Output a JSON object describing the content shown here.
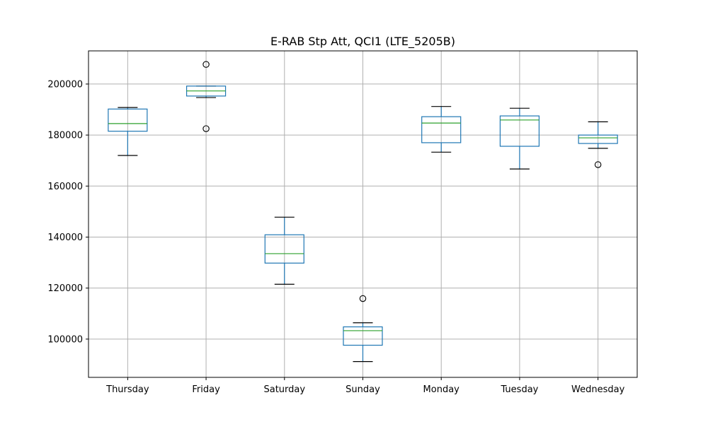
{
  "chart_data": {
    "type": "box",
    "title": "E-RAB Stp Att, QCI1 (LTE_5205B)",
    "xlabel": "",
    "ylabel": "",
    "ylim": [
      85000,
      213000
    ],
    "yticks": [
      100000,
      120000,
      140000,
      160000,
      180000,
      200000
    ],
    "ytick_labels": [
      "100000",
      "120000",
      "140000",
      "160000",
      "180000",
      "200000"
    ],
    "grid": true,
    "categories": [
      "Thursday",
      "Friday",
      "Saturday",
      "Sunday",
      "Monday",
      "Tuesday",
      "Wednesday"
    ],
    "boxes": [
      {
        "name": "Thursday",
        "whisker_low": 172000,
        "q1": 181500,
        "median": 184500,
        "q3": 190200,
        "whisker_high": 190800,
        "outliers": []
      },
      {
        "name": "Friday",
        "whisker_low": 194700,
        "q1": 195300,
        "median": 197300,
        "q3": 199200,
        "whisker_high": 199200,
        "outliers": [
          207700,
          182500
        ]
      },
      {
        "name": "Saturday",
        "whisker_low": 121500,
        "q1": 129800,
        "median": 133500,
        "q3": 140900,
        "whisker_high": 147800,
        "outliers": []
      },
      {
        "name": "Sunday",
        "whisker_low": 91200,
        "q1": 97600,
        "median": 103300,
        "q3": 104800,
        "whisker_high": 106400,
        "outliers": [
          115900
        ]
      },
      {
        "name": "Monday",
        "whisker_low": 173300,
        "q1": 177000,
        "median": 184700,
        "q3": 187200,
        "whisker_high": 191200,
        "outliers": []
      },
      {
        "name": "Tuesday",
        "whisker_low": 166700,
        "q1": 175600,
        "median": 185900,
        "q3": 187500,
        "whisker_high": 190500,
        "outliers": []
      },
      {
        "name": "Wednesday",
        "whisker_low": 174800,
        "q1": 176700,
        "median": 178900,
        "q3": 180000,
        "whisker_high": 185200,
        "outliers": [
          168400
        ]
      }
    ],
    "colors": {
      "box": "#1f77b4",
      "median": "#2ca02c",
      "whisker": "#1f77b4",
      "cap": "#000000",
      "outlier": "#000000",
      "grid": "#b0b0b0",
      "axes": "#000000"
    }
  }
}
